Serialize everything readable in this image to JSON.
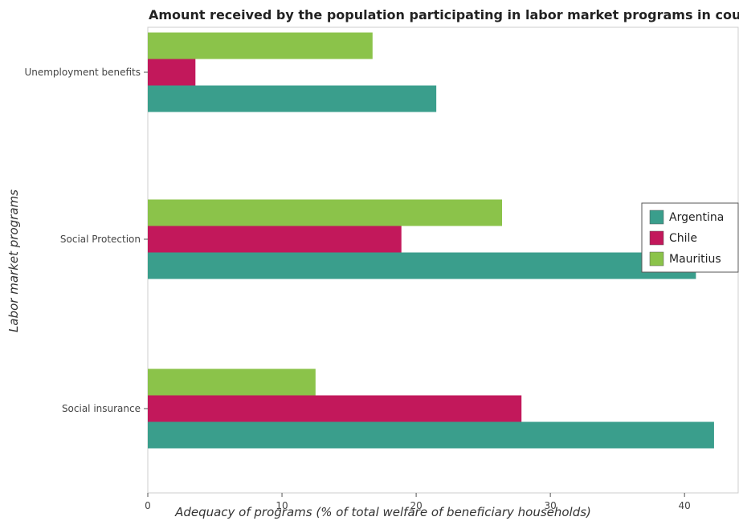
{
  "chart_data": {
    "type": "bar",
    "orientation": "horizontal",
    "title": "Amount received by the population participating in labor market programs in countries",
    "xlabel": "Adequacy of programs (% of total welfare of beneficiary households)",
    "ylabel": "Labor market programs",
    "categories": [
      "Social insurance",
      "Social Protection",
      "Unemployment benefits"
    ],
    "series": [
      {
        "name": "Argentina",
        "color": "#3a9e8c",
        "values": [
          42.2,
          40.85,
          21.5
        ]
      },
      {
        "name": "Chile",
        "color": "#c2185b",
        "values": [
          27.85,
          18.9,
          3.55
        ]
      },
      {
        "name": "Mauritius",
        "color": "#8bc34a",
        "values": [
          12.5,
          26.4,
          16.75
        ]
      }
    ],
    "xlim": [
      0,
      44
    ],
    "xticks": [
      0,
      10,
      20,
      30,
      40
    ],
    "xtick_labels": [
      "0",
      "10",
      "20",
      "30",
      "40"
    ],
    "grid": false,
    "legend_position": "right"
  }
}
